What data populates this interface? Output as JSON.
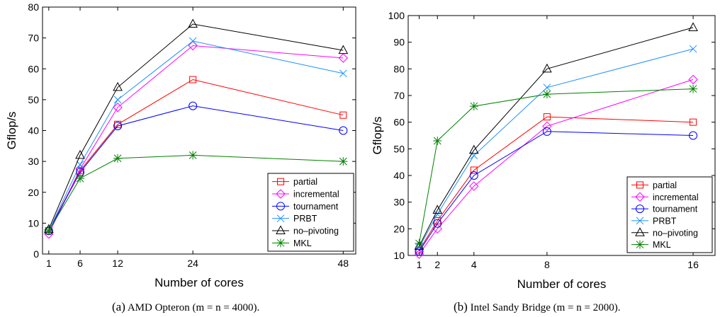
{
  "captions": [
    {
      "tag": "(a)",
      "text": "AMD Opteron (m = n = 4000)."
    },
    {
      "tag": "(b)",
      "text": "Intel Sandy Bridge (m = n = 2000)."
    }
  ],
  "chart_data": [
    {
      "type": "line",
      "xlabel": "Number of cores",
      "ylabel": "Gflop/s",
      "x": [
        1,
        6,
        12,
        24,
        48
      ],
      "xticks": [
        1,
        6,
        12,
        24,
        48
      ],
      "ylim": [
        0,
        80
      ],
      "yticks": [
        0,
        10,
        20,
        30,
        40,
        50,
        60,
        70,
        80
      ],
      "grid": false,
      "legend_position": "bottom-right",
      "series": [
        {
          "name": "partial",
          "color": "#ff0000",
          "marker": "square",
          "values": [
            7.5,
            27,
            42,
            56.5,
            45
          ]
        },
        {
          "name": "incremental",
          "color": "#ff00ff",
          "marker": "diamond",
          "values": [
            6.5,
            27.5,
            47.5,
            67.5,
            63.5
          ]
        },
        {
          "name": "tournament",
          "color": "#0000ff",
          "marker": "circle",
          "values": [
            7.5,
            26.5,
            41.5,
            48,
            40
          ]
        },
        {
          "name": "PRBT",
          "color": "#1e90ff",
          "marker": "x",
          "values": [
            7.5,
            29,
            50,
            69,
            58.5
          ]
        },
        {
          "name": "no–pivoting",
          "color": "#000000",
          "marker": "triangle",
          "values": [
            8,
            32,
            54,
            74.5,
            66
          ]
        },
        {
          "name": "MKL",
          "color": "#008000",
          "marker": "star",
          "values": [
            7.5,
            24.5,
            31,
            32,
            30
          ]
        }
      ]
    },
    {
      "type": "line",
      "xlabel": "Number of cores",
      "ylabel": "Gflop/s",
      "x": [
        1,
        2,
        4,
        8,
        16
      ],
      "xticks": [
        1,
        2,
        4,
        8,
        16
      ],
      "ylim": [
        10,
        100
      ],
      "yticks": [
        10,
        20,
        30,
        40,
        50,
        60,
        70,
        80,
        90,
        100
      ],
      "grid": false,
      "legend_position": "bottom-right",
      "series": [
        {
          "name": "partial",
          "color": "#ff0000",
          "marker": "square",
          "values": [
            12,
            23,
            42,
            62,
            60
          ]
        },
        {
          "name": "incremental",
          "color": "#ff00ff",
          "marker": "diamond",
          "values": [
            10.5,
            20,
            36,
            58.5,
            76
          ]
        },
        {
          "name": "tournament",
          "color": "#0000ff",
          "marker": "circle",
          "values": [
            11.5,
            22,
            40,
            56.5,
            55
          ]
        },
        {
          "name": "PRBT",
          "color": "#1e90ff",
          "marker": "x",
          "values": [
            13,
            25.5,
            47.5,
            73,
            87.5
          ]
        },
        {
          "name": "no–pivoting",
          "color": "#000000",
          "marker": "triangle",
          "values": [
            13.5,
            27,
            49.5,
            80,
            95.5
          ]
        },
        {
          "name": "MKL",
          "color": "#008000",
          "marker": "star",
          "values": [
            14.5,
            53,
            66,
            70.5,
            72.5
          ]
        }
      ]
    }
  ]
}
